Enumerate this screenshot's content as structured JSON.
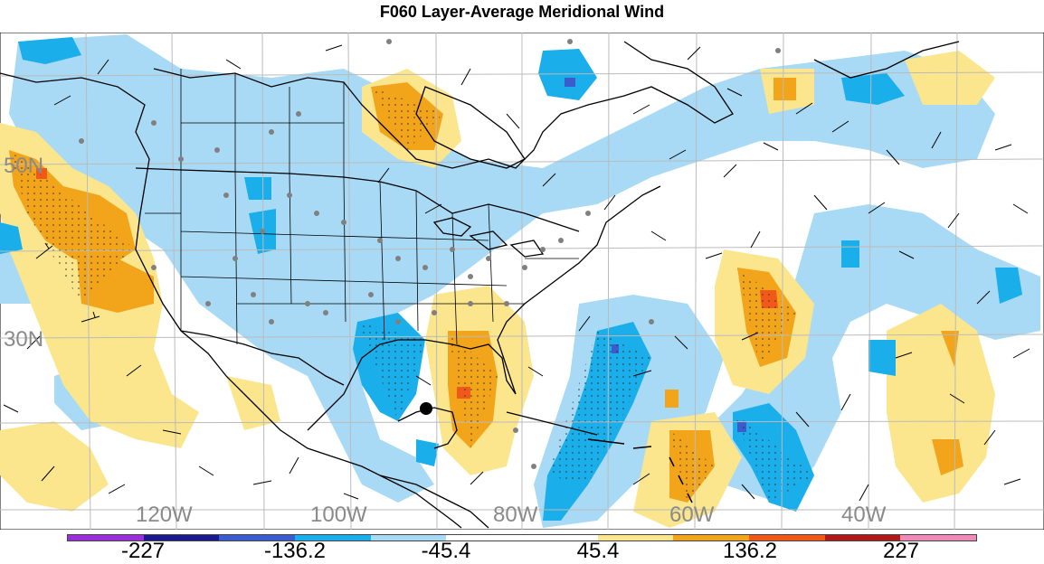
{
  "title": "F060 Layer-Average Meridional Wind",
  "latitude_labels": [
    "50N",
    "30N"
  ],
  "longitude_labels": [
    "120W",
    "100W",
    "80W",
    "60W",
    "40W"
  ],
  "colorbar": {
    "labels": [
      "-227",
      "-136.2",
      "-45.4",
      "45.4",
      "136.2",
      "227"
    ],
    "colors": [
      "#9b30d9",
      "#1a1a8c",
      "#3a5ccc",
      "#1aaeea",
      "#a8daf6",
      "#ffffff",
      "#ffffff",
      "#fbe68e",
      "#f2a51a",
      "#f0591a",
      "#b01a1a",
      "#f08ab8"
    ]
  },
  "colors": {
    "land_outline": "#000000",
    "gridline": "#bbbbbb",
    "station_dot": "#808080",
    "marker": "#000000"
  }
}
